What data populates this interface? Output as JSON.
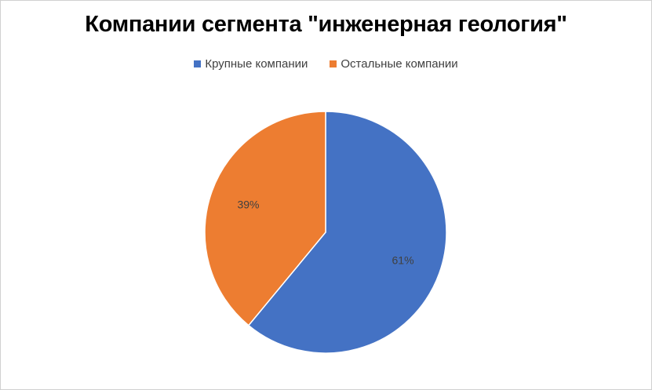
{
  "chart_data": {
    "type": "pie",
    "title": "Компании сегмента \"инженерная геология\"",
    "legend_position": "top",
    "series": [
      {
        "categories": [
          "Крупные компании",
          "Остальные компании"
        ],
        "values": [
          61,
          39
        ],
        "labels": [
          "61%",
          "39%"
        ],
        "colors": [
          "#4472C4",
          "#ED7D31"
        ]
      }
    ]
  }
}
